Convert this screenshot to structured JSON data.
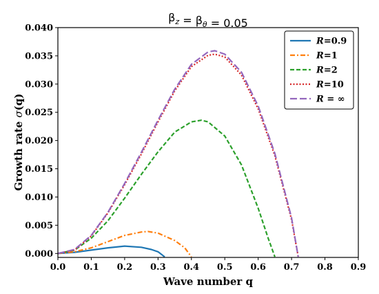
{
  "chart_data": {
    "type": "line",
    "title": "β_z = β_θ = 0.05",
    "xlabel": "Wave number q",
    "ylabel": "Growth rate σ(q)",
    "xlim": [
      0.0,
      0.9
    ],
    "ylim": [
      -0.0007,
      0.04
    ],
    "xticks": [
      "0.0",
      "0.1",
      "0.2",
      "0.3",
      "0.4",
      "0.5",
      "0.6",
      "0.7",
      "0.8",
      "0.9"
    ],
    "yticks": [
      "0.000",
      "0.005",
      "0.010",
      "0.015",
      "0.020",
      "0.025",
      "0.030",
      "0.035",
      "0.040"
    ],
    "grid": false,
    "legend_position": "top-right",
    "series": [
      {
        "name": "R=0.9",
        "color": "#1f77b4",
        "dash": "solid",
        "x": [
          0.0,
          0.05,
          0.1,
          0.15,
          0.2,
          0.25,
          0.28,
          0.3,
          0.32
        ],
        "y": [
          0.0,
          0.0002,
          0.0006,
          0.001,
          0.0013,
          0.0011,
          0.0007,
          0.0003,
          -0.0006
        ]
      },
      {
        "name": "R=1",
        "color": "#ff7f0e",
        "dash": "dashdot",
        "x": [
          0.0,
          0.05,
          0.1,
          0.15,
          0.2,
          0.25,
          0.27,
          0.3,
          0.35,
          0.38,
          0.4
        ],
        "y": [
          0.0,
          0.0003,
          0.001,
          0.0021,
          0.0032,
          0.0038,
          0.0039,
          0.0036,
          0.0023,
          0.001,
          -0.0006
        ]
      },
      {
        "name": "R=2",
        "color": "#2ca02c",
        "dash": "dashed",
        "x": [
          0.0,
          0.05,
          0.1,
          0.15,
          0.2,
          0.25,
          0.3,
          0.35,
          0.4,
          0.43,
          0.45,
          0.5,
          0.55,
          0.6,
          0.63,
          0.65
        ],
        "y": [
          0.0,
          0.0006,
          0.0027,
          0.0058,
          0.0098,
          0.014,
          0.018,
          0.0215,
          0.0233,
          0.0236,
          0.0233,
          0.0208,
          0.0157,
          0.008,
          0.0027,
          -0.0006
        ]
      },
      {
        "name": "R=10",
        "color": "#d62728",
        "dash": "dotted",
        "x": [
          0.0,
          0.05,
          0.1,
          0.15,
          0.2,
          0.25,
          0.3,
          0.35,
          0.4,
          0.45,
          0.47,
          0.5,
          0.55,
          0.6,
          0.65,
          0.7,
          0.72
        ],
        "y": [
          0.0,
          0.0006,
          0.0031,
          0.0072,
          0.0122,
          0.0176,
          0.0233,
          0.0288,
          0.0331,
          0.0351,
          0.0353,
          0.0348,
          0.0316,
          0.0256,
          0.0173,
          0.006,
          -0.0006
        ]
      },
      {
        "name": "R = ∞",
        "color": "#9467bd",
        "dash": "longdash",
        "x": [
          0.0,
          0.05,
          0.1,
          0.15,
          0.2,
          0.25,
          0.3,
          0.35,
          0.4,
          0.45,
          0.47,
          0.5,
          0.55,
          0.6,
          0.65,
          0.7,
          0.72
        ],
        "y": [
          0.0,
          0.0007,
          0.0032,
          0.0073,
          0.0124,
          0.0179,
          0.0236,
          0.0291,
          0.0335,
          0.0357,
          0.0359,
          0.0353,
          0.0321,
          0.0261,
          0.0177,
          0.0063,
          -0.0006
        ]
      }
    ]
  }
}
